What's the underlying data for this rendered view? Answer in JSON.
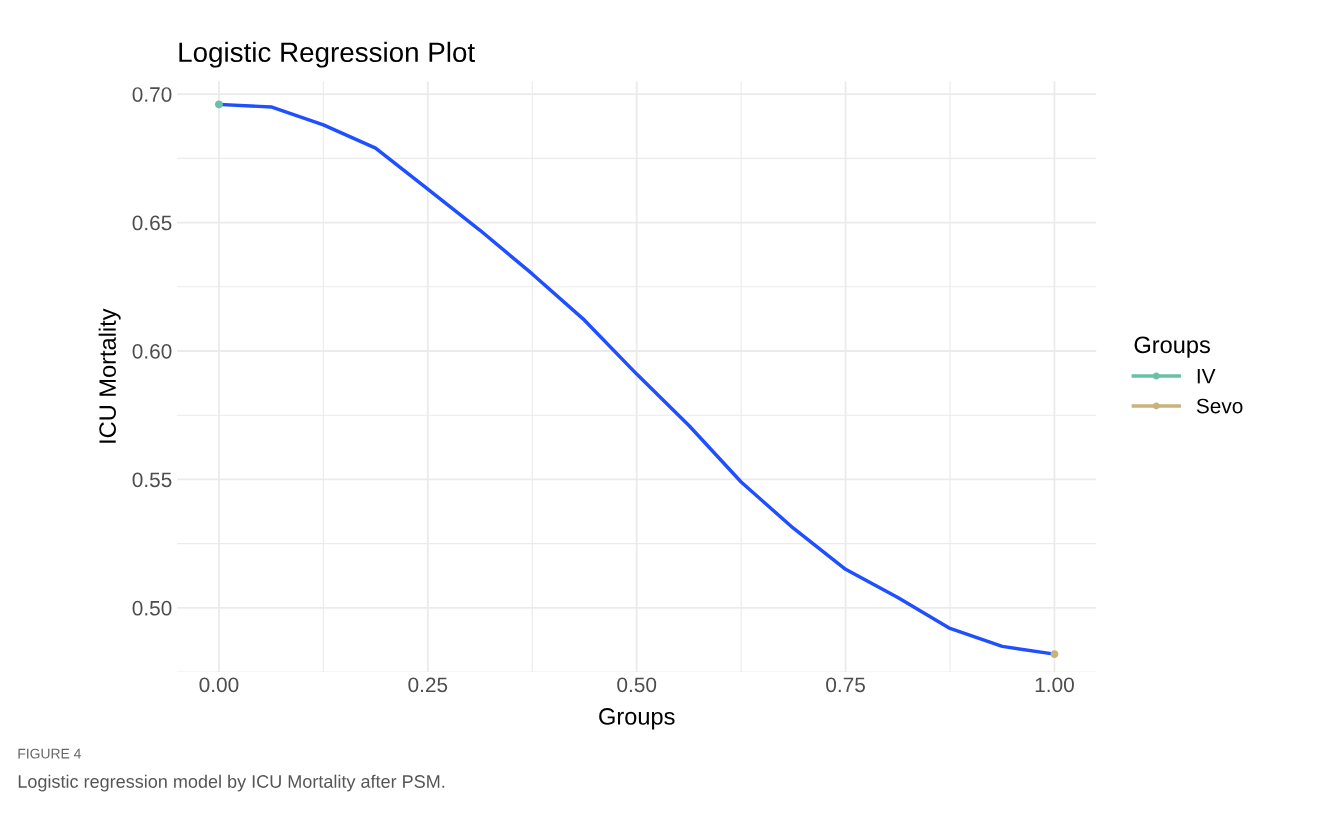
{
  "chart_data": {
    "type": "line",
    "title": "Logistic Regression Plot",
    "xlabel": "Groups",
    "ylabel": "ICU Mortality",
    "legend_title": "Groups",
    "legend": "right",
    "grid": true,
    "xlim": [
      -0.05,
      1.05
    ],
    "xticks": [
      {
        "value": 0,
        "label": "0.00"
      },
      {
        "value": 0.25,
        "label": "0.25"
      },
      {
        "value": 0.5,
        "label": "0.50"
      },
      {
        "value": 0.75,
        "label": "0.75"
      },
      {
        "value": 1,
        "label": "1.00"
      }
    ],
    "ylim": [
      0.475,
      0.705
    ],
    "yticks": [
      {
        "value": 0.5,
        "label": "0.50"
      },
      {
        "value": 0.55,
        "label": "0.55"
      },
      {
        "value": 0.6,
        "label": "0.60"
      },
      {
        "value": 0.65,
        "label": "0.65"
      },
      {
        "value": 0.7,
        "label": "0.70"
      }
    ],
    "series": [
      {
        "color": "#1f4fff",
        "x": [
          0,
          0.0625,
          0.125,
          0.1875,
          0.25,
          0.3125,
          0.375,
          0.4375,
          0.5,
          0.5625,
          0.625,
          0.6875,
          0.75,
          0.8125,
          0.875,
          0.9375,
          1
        ],
        "values": [
          0.696,
          0.695,
          0.688,
          0.679,
          0.663,
          0.647,
          0.63,
          0.612,
          0.591,
          0.571,
          0.549,
          0.531,
          0.515,
          0.504,
          0.492,
          0.485,
          0.482
        ]
      },
      {
        "type": "scatter",
        "name": "IV",
        "color": "#66c2a5",
        "x": [
          0
        ],
        "values": [
          0.696
        ]
      },
      {
        "type": "scatter",
        "name": "Sevo",
        "color": "#c9b27c",
        "x": [
          1
        ],
        "values": [
          0.482
        ]
      }
    ],
    "annotations": [
      "FIGURE 4",
      "Logistic regression model by ICU Mortality after PSM."
    ]
  }
}
